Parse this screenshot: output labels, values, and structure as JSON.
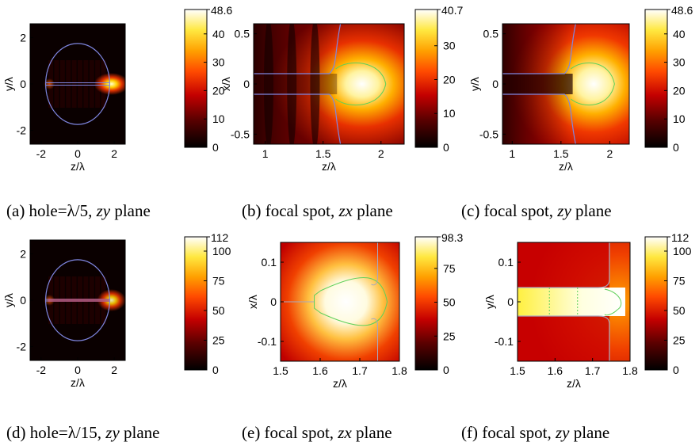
{
  "chart_data": [
    {
      "type": "heatmap",
      "caption": {
        "prefix": "(a) hole=λ/5, ",
        "plane": "zy",
        "suffix": " plane"
      },
      "xlabel": "z/λ",
      "ylabel": "y/λ",
      "xlim": [
        -2.6,
        2.6
      ],
      "ylim": [
        -2.6,
        2.6
      ],
      "xticks": [
        "-2",
        "0",
        "2"
      ],
      "xtick_values": [
        -2,
        0,
        2
      ],
      "yticks": [
        "2",
        "0",
        "-2"
      ],
      "ytick_values": [
        2,
        0,
        -2
      ],
      "colorbar": {
        "min": 0,
        "max": 48.6,
        "max_label": "48.6",
        "ticks": [
          "40",
          "30",
          "20",
          "10",
          "0"
        ],
        "tick_values": [
          40,
          30,
          20,
          10,
          0
        ]
      },
      "colormap": "hot"
    },
    {
      "type": "heatmap",
      "caption": {
        "prefix": "(b) focal spot, ",
        "plane": "zx",
        "suffix": " plane"
      },
      "xlabel": "z/λ",
      "ylabel": "x/λ",
      "xlim": [
        0.9,
        2.2
      ],
      "ylim": [
        -0.6,
        0.6
      ],
      "xticks": [
        "1",
        "1.5",
        "2"
      ],
      "xtick_values": [
        1,
        1.5,
        2
      ],
      "yticks": [
        "0.5",
        "0",
        "-0.5"
      ],
      "ytick_values": [
        0.5,
        0,
        -0.5
      ],
      "colorbar": {
        "min": 0,
        "max": 40.7,
        "max_label": "40.7",
        "ticks": [
          "30",
          "20",
          "10",
          "0"
        ],
        "tick_values": [
          30,
          20,
          10,
          0
        ]
      },
      "colormap": "hot"
    },
    {
      "type": "heatmap",
      "caption": {
        "prefix": "(c) focal spot, ",
        "plane": "zy",
        "suffix": " plane"
      },
      "xlabel": "z/λ",
      "ylabel": "y/λ",
      "xlim": [
        0.9,
        2.2
      ],
      "ylim": [
        -0.6,
        0.6
      ],
      "xticks": [
        "1",
        "1.5",
        "2"
      ],
      "xtick_values": [
        1,
        1.5,
        2
      ],
      "yticks": [
        "0.5",
        "0",
        "-0.5"
      ],
      "ytick_values": [
        0.5,
        0,
        -0.5
      ],
      "colorbar": {
        "min": 0,
        "max": 48.6,
        "max_label": "48.6",
        "ticks": [
          "40",
          "30",
          "20",
          "10",
          "0"
        ],
        "tick_values": [
          40,
          30,
          20,
          10,
          0
        ]
      },
      "colormap": "hot"
    },
    {
      "type": "heatmap",
      "caption": {
        "prefix": "(d) hole=λ/15, ",
        "plane": "zy",
        "suffix": " plane"
      },
      "xlabel": "z/λ",
      "ylabel": "y/λ",
      "xlim": [
        -2.6,
        2.6
      ],
      "ylim": [
        -2.6,
        2.6
      ],
      "xticks": [
        "-2",
        "0",
        "2"
      ],
      "xtick_values": [
        -2,
        0,
        2
      ],
      "yticks": [
        "2",
        "0",
        "-2"
      ],
      "ytick_values": [
        2,
        0,
        -2
      ],
      "colorbar": {
        "min": 0,
        "max": 112,
        "max_label": "112",
        "ticks": [
          "100",
          "75",
          "50",
          "25",
          "0"
        ],
        "tick_values": [
          100,
          75,
          50,
          25,
          0
        ]
      },
      "colormap": "hot"
    },
    {
      "type": "heatmap",
      "caption": {
        "prefix": "(e) focal spot, ",
        "plane": "zx",
        "suffix": " plane"
      },
      "xlabel": "z/λ",
      "ylabel": "x/λ",
      "xlim": [
        1.5,
        1.8
      ],
      "ylim": [
        -0.15,
        0.15
      ],
      "xticks": [
        "1.5",
        "1.6",
        "1.7",
        "1.8"
      ],
      "xtick_values": [
        1.5,
        1.6,
        1.7,
        1.8
      ],
      "yticks": [
        "0.1",
        "0",
        "-0.1"
      ],
      "ytick_values": [
        0.1,
        0,
        -0.1
      ],
      "colorbar": {
        "min": 0,
        "max": 98.3,
        "max_label": "98.3",
        "ticks": [
          "75",
          "50",
          "25",
          "0"
        ],
        "tick_values": [
          75,
          50,
          25,
          0
        ]
      },
      "colormap": "hot"
    },
    {
      "type": "heatmap",
      "caption": {
        "prefix": "(f) focal spot, ",
        "plane": "zy",
        "suffix": " plane"
      },
      "xlabel": "z/λ",
      "ylabel": "y/λ",
      "xlim": [
        1.5,
        1.8
      ],
      "ylim": [
        -0.15,
        0.15
      ],
      "xticks": [
        "1.5",
        "1.6",
        "1.7",
        "1.8"
      ],
      "xtick_values": [
        1.5,
        1.6,
        1.7,
        1.8
      ],
      "yticks": [
        "0.1",
        "0",
        "-0.1"
      ],
      "ytick_values": [
        0.1,
        0,
        -0.1
      ],
      "colorbar": {
        "min": 0,
        "max": 112,
        "max_label": "112",
        "ticks": [
          "100",
          "75",
          "50",
          "25",
          "0"
        ],
        "tick_values": [
          100,
          75,
          50,
          25,
          0
        ]
      },
      "colormap": "hot"
    }
  ],
  "colors": {
    "contour_blue": "#7f86e0",
    "contour_green": "#5fd05a",
    "contour_gray": "#a8a8c0"
  }
}
